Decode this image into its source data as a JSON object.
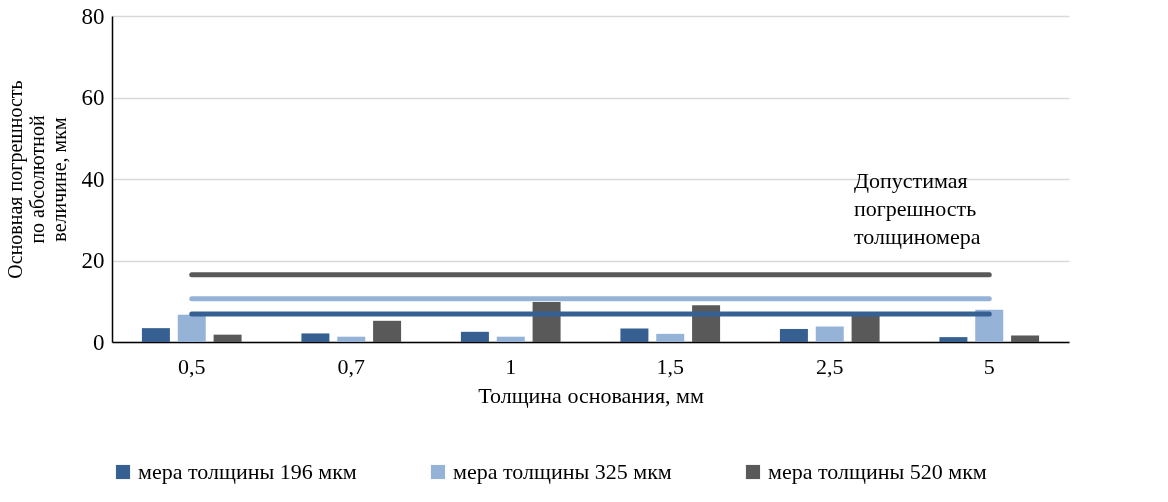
{
  "chart_data": {
    "type": "bar",
    "categories": [
      "0,5",
      "0,7",
      "1",
      "1,5",
      "2,5",
      "5"
    ],
    "xlabel": "Толщина основания, мм",
    "ylabel": "Основная погрешность\nпо абсолютной\nвеличине, мкм",
    "series": [
      {
        "name": "мера толщины 196 мкм",
        "color": "#366092",
        "values": [
          3.4,
          2.1,
          2.5,
          3.3,
          3.2,
          1.2
        ]
      },
      {
        "name": "мера толщины 325 мкм",
        "color": "#95b3d7",
        "values": [
          6.7,
          1.3,
          1.3,
          2.0,
          3.8,
          7.9
        ]
      },
      {
        "name": "мера толщины 520 мкм",
        "color": "#595959",
        "values": [
          1.8,
          5.2,
          9.8,
          9.0,
          7.0,
          1.6
        ]
      },
      {
        "type": "line",
        "color": "#595959",
        "values": [
          16.5,
          16.5,
          16.5,
          16.5,
          16.5,
          16.5
        ]
      },
      {
        "type": "line",
        "color": "#95b3d7",
        "values": [
          10.6,
          10.6,
          10.6,
          10.6,
          10.6,
          10.6
        ]
      },
      {
        "type": "line",
        "color": "#366092",
        "values": [
          6.9,
          6.9,
          6.9,
          6.9,
          6.9,
          6.9
        ]
      }
    ],
    "annotations": [
      "Допустимая погрешность толщиномера"
    ],
    "ylim": [
      0,
      80
    ],
    "yticks": [
      0,
      20,
      40,
      60,
      80
    ],
    "grid": "y",
    "legend": "bottom"
  }
}
